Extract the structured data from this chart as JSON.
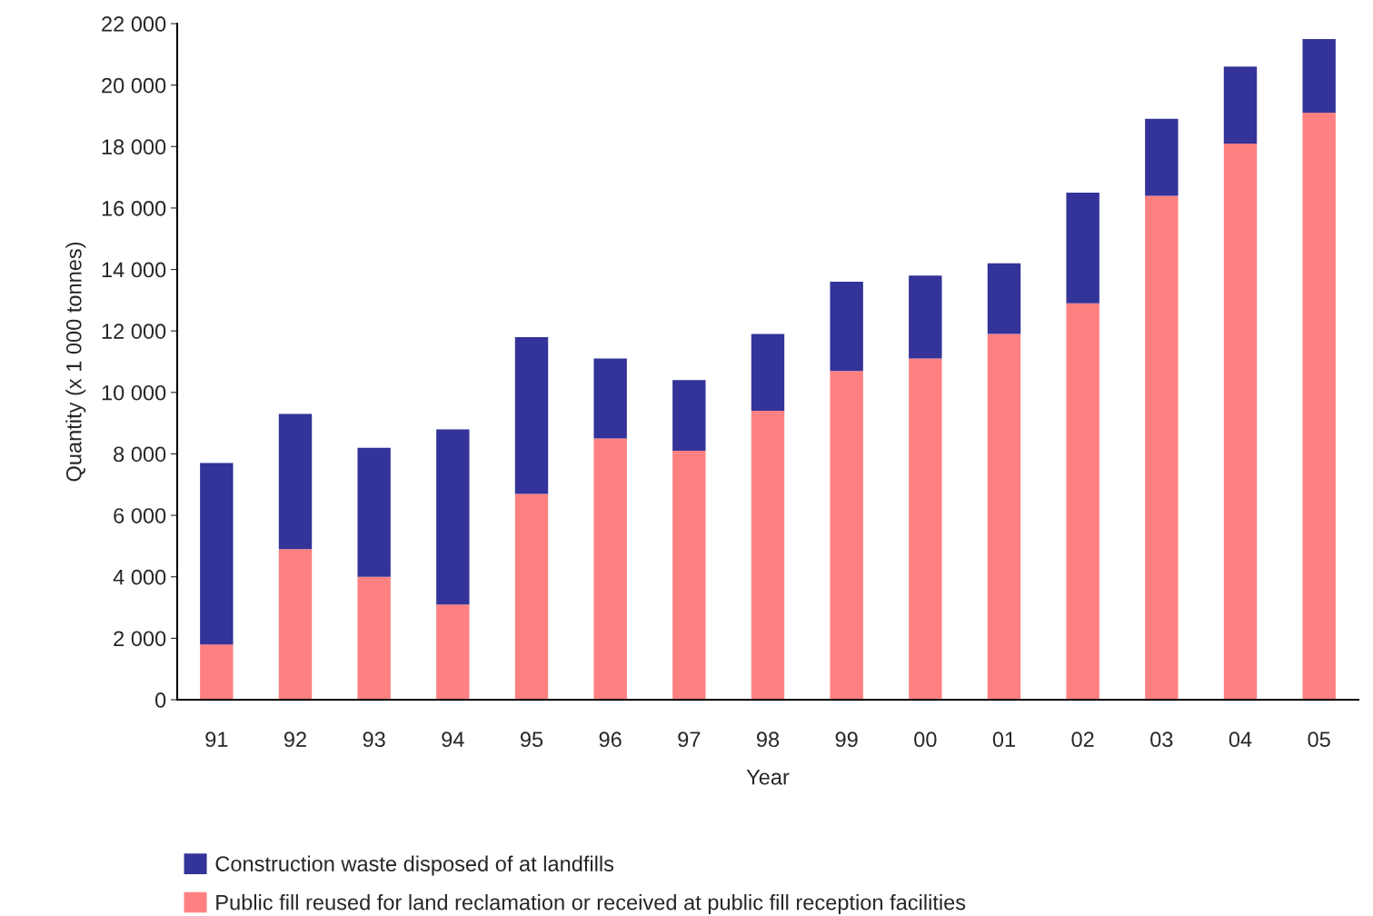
{
  "chart_data": {
    "type": "bar",
    "stacked": true,
    "xlabel": "Year",
    "ylabel": "Quantity (x 1 000 tonnes)",
    "categories": [
      "91",
      "92",
      "93",
      "94",
      "95",
      "96",
      "97",
      "98",
      "99",
      "00",
      "01",
      "02",
      "03",
      "04",
      "05"
    ],
    "series": [
      {
        "name": "Public fill reused for land reclamation or received at public fill reception facilities",
        "color": "#ff8080",
        "values": [
          1800,
          4900,
          4000,
          3100,
          6700,
          8500,
          8100,
          9400,
          10700,
          11100,
          11900,
          12900,
          16400,
          18100,
          19100
        ]
      },
      {
        "name": "Construction waste disposed of at landfills",
        "color": "#333399",
        "values": [
          5900,
          4400,
          4200,
          5700,
          5100,
          2600,
          2300,
          2500,
          2900,
          2700,
          2300,
          3600,
          2500,
          2500,
          2400
        ]
      }
    ],
    "ylim": [
      0,
      22000
    ],
    "yticks": [
      0,
      {
        "value": 2000,
        "label": "2 000"
      },
      {
        "value": 4000,
        "label": "4 000"
      },
      {
        "value": 6000,
        "label": "6 000"
      },
      {
        "value": 8000,
        "label": "8 000"
      },
      {
        "value": 10000,
        "label": "10 000"
      },
      {
        "value": 12000,
        "label": "12 000"
      },
      {
        "value": 14000,
        "label": "14 000"
      },
      {
        "value": 16000,
        "label": "16 000"
      },
      {
        "value": 18000,
        "label": "18 000"
      },
      {
        "value": 20000,
        "label": "20 000"
      },
      {
        "value": 22000,
        "label": "22 000"
      }
    ],
    "grid": false,
    "legend": "bottom"
  }
}
